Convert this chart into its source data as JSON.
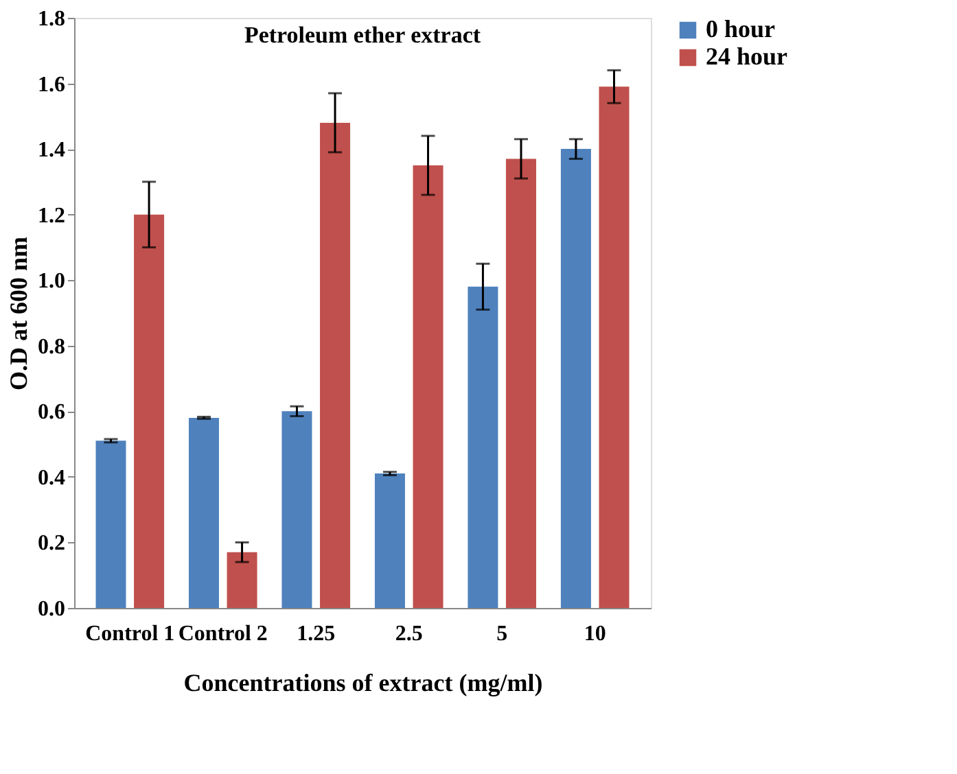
{
  "chart_data": {
    "type": "bar",
    "title": "Petroleum ether extract",
    "xlabel": "Concentrations of extract (mg/ml)",
    "ylabel": "O.D at 600 nm",
    "categories": [
      "Control 1",
      "Control 2",
      "1.25",
      "2.5",
      "5",
      "10"
    ],
    "series": [
      {
        "name": "0 hour",
        "color": "#4f81bd",
        "values": [
          0.51,
          0.58,
          0.6,
          0.41,
          0.98,
          1.4
        ],
        "errors": [
          0.005,
          0.003,
          0.015,
          0.005,
          0.07,
          0.03
        ]
      },
      {
        "name": "24 hour",
        "color": "#c0504d",
        "values": [
          1.2,
          0.17,
          1.48,
          1.35,
          1.37,
          1.59
        ],
        "errors": [
          0.1,
          0.03,
          0.09,
          0.09,
          0.06,
          0.05
        ]
      }
    ],
    "ylim": [
      0,
      1.8
    ],
    "yticks": [
      {
        "value": 0,
        "label": "0.0"
      },
      {
        "value": 0.2,
        "label": "0.2"
      },
      {
        "value": 0.4,
        "label": "0.4"
      },
      {
        "value": 0.6,
        "label": "0.6"
      },
      {
        "value": 0.8,
        "label": "0.8"
      },
      {
        "value": 1.0,
        "label": "1.0"
      },
      {
        "value": 1.2,
        "label": "1.2"
      },
      {
        "value": 1.4,
        "label": "1.4"
      },
      {
        "value": 1.6,
        "label": "1.6"
      },
      {
        "value": 1.8,
        "label": "1.8"
      }
    ],
    "grid": false,
    "legend": "right"
  }
}
